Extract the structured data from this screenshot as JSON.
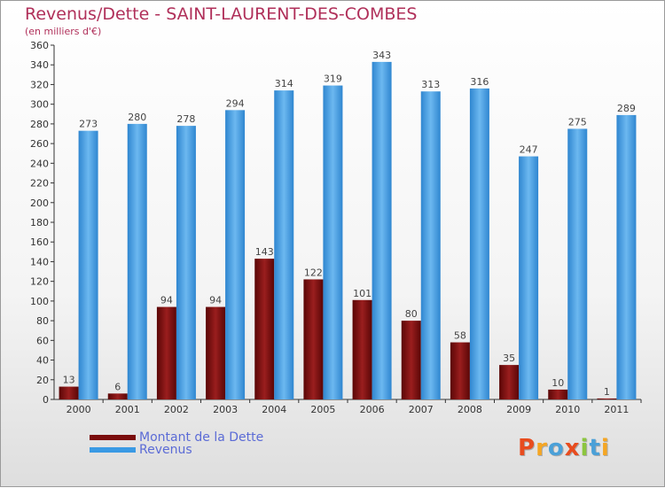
{
  "chart_data": {
    "type": "bar",
    "title": "Revenus/Dette - SAINT-LAURENT-DES-COMBES",
    "subtitle": "(en milliers d'€)",
    "categories": [
      "2000",
      "2001",
      "2002",
      "2003",
      "2004",
      "2005",
      "2006",
      "2007",
      "2008",
      "2009",
      "2010",
      "2011"
    ],
    "series": [
      {
        "name": "Montant de la Dette",
        "color": "#7a0c0c",
        "values": [
          13,
          6,
          94,
          94,
          143,
          122,
          101,
          80,
          58,
          35,
          10,
          1
        ]
      },
      {
        "name": "Revenus",
        "color": "#3a9ae4",
        "values": [
          273,
          280,
          278,
          294,
          314,
          319,
          343,
          313,
          316,
          247,
          275,
          289
        ]
      }
    ],
    "ylim": [
      0,
      360
    ],
    "yticks": [
      0,
      20,
      40,
      60,
      80,
      100,
      120,
      140,
      160,
      180,
      200,
      220,
      240,
      260,
      280,
      300,
      320,
      340,
      360
    ],
    "grid": false,
    "legend_position": "bottom-left"
  },
  "brand": {
    "logo_letters": [
      "P",
      "r",
      "o",
      "x",
      "i",
      "t",
      "i"
    ],
    "logo_colors": [
      "#e84c1e",
      "#f5a623",
      "#4aa0d8",
      "#e84c1e",
      "#8cc63f",
      "#4aa0d8",
      "#f5a623"
    ]
  }
}
